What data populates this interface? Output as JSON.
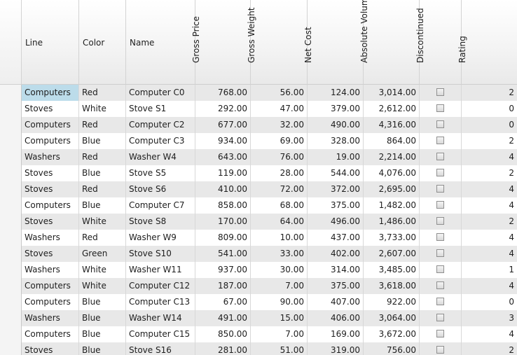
{
  "columns": [
    "Line",
    "Color",
    "Name",
    "Gross Price",
    "Gross Weight",
    "Net Cost",
    "Absolute Volume",
    "Discontinued",
    "Rating"
  ],
  "rows": [
    [
      "Computers",
      "Red",
      "Computer C0",
      "768.00",
      "56.00",
      "124.00",
      "3,014.00",
      false,
      "2"
    ],
    [
      "Stoves",
      "White",
      "Stove S1",
      "292.00",
      "47.00",
      "379.00",
      "2,612.00",
      false,
      "0"
    ],
    [
      "Computers",
      "Red",
      "Computer C2",
      "677.00",
      "32.00",
      "490.00",
      "4,316.00",
      false,
      "0"
    ],
    [
      "Computers",
      "Blue",
      "Computer C3",
      "934.00",
      "69.00",
      "328.00",
      "864.00",
      false,
      "2"
    ],
    [
      "Washers",
      "Red",
      "Washer W4",
      "643.00",
      "76.00",
      "19.00",
      "2,214.00",
      false,
      "4"
    ],
    [
      "Stoves",
      "Blue",
      "Stove S5",
      "119.00",
      "28.00",
      "544.00",
      "4,076.00",
      false,
      "2"
    ],
    [
      "Stoves",
      "Red",
      "Stove S6",
      "410.00",
      "72.00",
      "372.00",
      "2,695.00",
      false,
      "4"
    ],
    [
      "Computers",
      "Blue",
      "Computer C7",
      "858.00",
      "68.00",
      "375.00",
      "1,482.00",
      false,
      "4"
    ],
    [
      "Stoves",
      "White",
      "Stove S8",
      "170.00",
      "64.00",
      "496.00",
      "1,486.00",
      false,
      "2"
    ],
    [
      "Washers",
      "Red",
      "Washer W9",
      "809.00",
      "10.00",
      "437.00",
      "3,733.00",
      false,
      "4"
    ],
    [
      "Stoves",
      "Green",
      "Stove S10",
      "541.00",
      "33.00",
      "402.00",
      "2,607.00",
      false,
      "4"
    ],
    [
      "Washers",
      "White",
      "Washer W11",
      "937.00",
      "30.00",
      "314.00",
      "3,485.00",
      false,
      "1"
    ],
    [
      "Computers",
      "White",
      "Computer C12",
      "187.00",
      "7.00",
      "375.00",
      "3,618.00",
      false,
      "4"
    ],
    [
      "Computers",
      "Blue",
      "Computer C13",
      "67.00",
      "90.00",
      "407.00",
      "922.00",
      false,
      "0"
    ],
    [
      "Washers",
      "Blue",
      "Washer W14",
      "491.00",
      "15.00",
      "406.00",
      "3,064.00",
      false,
      "3"
    ],
    [
      "Computers",
      "Blue",
      "Computer C15",
      "850.00",
      "7.00",
      "169.00",
      "3,672.00",
      false,
      "4"
    ],
    [
      "Stoves",
      "Blue",
      "Stove S16",
      "281.00",
      "51.00",
      "319.00",
      "756.00",
      false,
      "2"
    ]
  ],
  "selected_cell": "Computers (row 1, Line)",
  "colors": {
    "row_alt": "#e8e8e8",
    "selection": "#bcdcea",
    "grid_line": "#d8d8d8"
  }
}
